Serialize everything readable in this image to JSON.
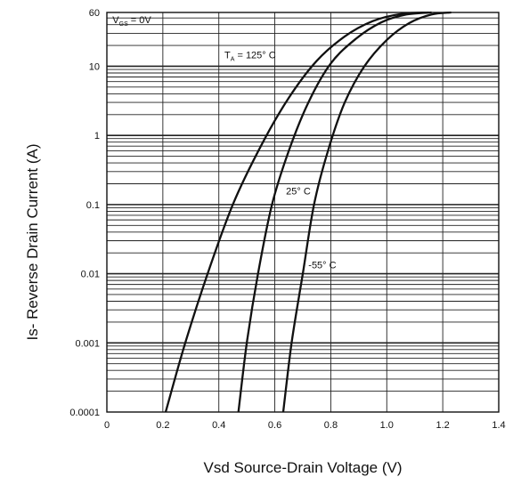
{
  "chart_data": {
    "type": "line",
    "xlabel": "Vsd Source-Drain Voltage (V)",
    "ylabel": "Is- Reverse Drain Current (A)",
    "xlim": [
      0,
      1.4
    ],
    "ylim": [
      0.0001,
      60
    ],
    "y_scale": "log",
    "grid": true,
    "x_ticks": [
      {
        "value": 0,
        "label": "0"
      },
      {
        "value": 0.2,
        "label": "0.2"
      },
      {
        "value": 0.4,
        "label": "0.4"
      },
      {
        "value": 0.6,
        "label": "0.6"
      },
      {
        "value": 0.8,
        "label": "0.8"
      },
      {
        "value": 1.0,
        "label": "1.0"
      },
      {
        "value": 1.2,
        "label": "1.2"
      },
      {
        "value": 1.4,
        "label": "1.4"
      }
    ],
    "y_ticks": [
      {
        "value": 0.0001,
        "label": "0.0001"
      },
      {
        "value": 0.001,
        "label": "0.001"
      },
      {
        "value": 0.01,
        "label": "0.01"
      },
      {
        "value": 0.1,
        "label": "0.1"
      },
      {
        "value": 1,
        "label": "1"
      },
      {
        "value": 10,
        "label": "10"
      },
      {
        "value": 60,
        "label": "60"
      }
    ],
    "annotations": [
      {
        "text": "V",
        "sub": "GS",
        "rest": " = 0V",
        "x": 0.02,
        "y": 42
      },
      {
        "text": "T",
        "sub": "A",
        "rest": " = 125° C",
        "x": 0.42,
        "y": 13
      },
      {
        "text": "25° C",
        "sub": "",
        "rest": "",
        "x": 0.64,
        "y": 0.14
      },
      {
        "text": "-55° C",
        "sub": "",
        "rest": "",
        "x": 0.72,
        "y": 0.012
      }
    ],
    "series": [
      {
        "label": "T = 125° C",
        "x": [
          0.21,
          0.28,
          0.36,
          0.45,
          0.55,
          0.65,
          0.75,
          0.85,
          0.95,
          1.05,
          1.15
        ],
        "y": [
          0.0001,
          0.001,
          0.01,
          0.1,
          0.7,
          3.5,
          12,
          27,
          45,
          57,
          60
        ]
      },
      {
        "label": "25° C",
        "x": [
          0.47,
          0.5,
          0.54,
          0.59,
          0.65,
          0.72,
          0.8,
          0.89,
          0.98,
          1.07,
          1.16
        ],
        "y": [
          0.0001,
          0.001,
          0.01,
          0.1,
          0.6,
          3.0,
          11,
          25,
          43,
          56,
          60
        ]
      },
      {
        "label": "-55° C",
        "x": [
          0.63,
          0.66,
          0.7,
          0.74,
          0.79,
          0.85,
          0.92,
          1.0,
          1.08,
          1.16,
          1.23
        ],
        "y": [
          0.0001,
          0.001,
          0.01,
          0.1,
          0.6,
          3.0,
          10,
          24,
          42,
          56,
          60
        ]
      }
    ]
  }
}
